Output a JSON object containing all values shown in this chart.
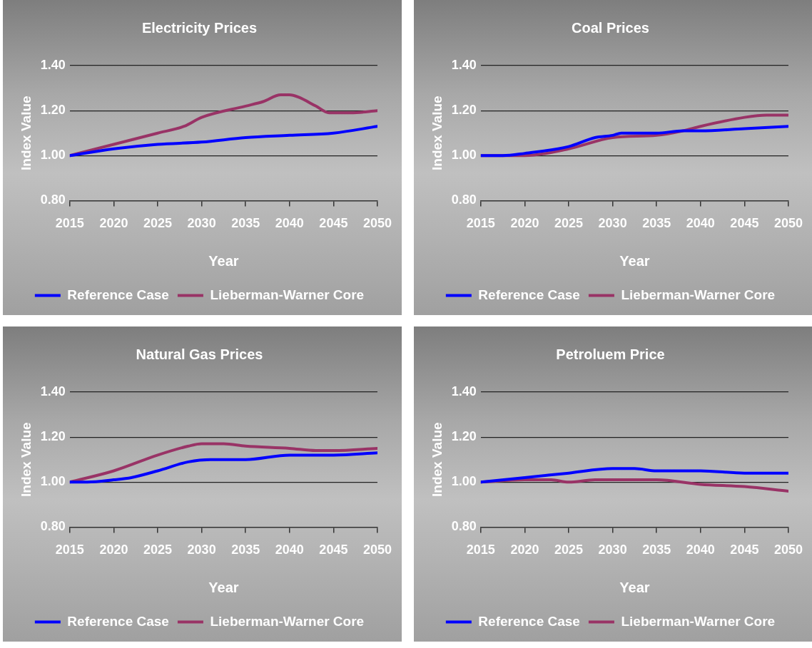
{
  "chart_data": [
    {
      "type": "line",
      "title": "Electricity Prices",
      "xlabel": "Year",
      "ylabel": "Index Value",
      "xlim": [
        2015,
        2050
      ],
      "xticks": [
        2015,
        2020,
        2025,
        2030,
        2035,
        2040,
        2045,
        2050
      ],
      "ylim": [
        0.8,
        1.4
      ],
      "yticks": [
        {
          "value": 0.8,
          "label": "0.80"
        },
        {
          "value": 1.0,
          "label": "1.00"
        },
        {
          "value": 1.2,
          "label": "1.20"
        },
        {
          "value": 1.4,
          "label": "1.40"
        }
      ],
      "grid": "y",
      "legend": "bottom",
      "marker": "none",
      "line_style": "solid",
      "series": [
        {
          "name": "Reference Case",
          "color": "#0000ff",
          "x": [
            2015,
            2020,
            2025,
            2030,
            2035,
            2040,
            2045,
            2050
          ],
          "values": [
            1.0,
            1.03,
            1.05,
            1.06,
            1.08,
            1.09,
            1.1,
            1.13
          ]
        },
        {
          "name": "Lieberman-Warner Core",
          "color": "#993366",
          "x": [
            2015,
            2020,
            2025,
            2028,
            2030,
            2035,
            2037,
            2039,
            2040,
            2041,
            2043,
            2044.5,
            2045,
            2047,
            2050
          ],
          "values": [
            1.0,
            1.05,
            1.1,
            1.13,
            1.17,
            1.22,
            1.24,
            1.27,
            1.27,
            1.26,
            1.22,
            1.19,
            1.19,
            1.19,
            1.2
          ]
        }
      ]
    },
    {
      "type": "line",
      "title": "Coal Prices",
      "xlabel": "Year",
      "ylabel": "Index Value",
      "xlim": [
        2015,
        2050
      ],
      "xticks": [
        2015,
        2020,
        2025,
        2030,
        2035,
        2040,
        2045,
        2050
      ],
      "ylim": [
        0.8,
        1.4
      ],
      "yticks": [
        {
          "value": 0.8,
          "label": "0.80"
        },
        {
          "value": 1.0,
          "label": "1.00"
        },
        {
          "value": 1.2,
          "label": "1.20"
        },
        {
          "value": 1.4,
          "label": "1.40"
        }
      ],
      "grid": "y",
      "legend": "bottom",
      "marker": "none",
      "line_style": "solid",
      "series": [
        {
          "name": "Reference Case",
          "color": "#0000ff",
          "x": [
            2015,
            2017.5,
            2020,
            2025,
            2028,
            2030,
            2031,
            2035,
            2038,
            2040,
            2045,
            2050
          ],
          "values": [
            1.0,
            1.0,
            1.01,
            1.04,
            1.08,
            1.09,
            1.1,
            1.1,
            1.11,
            1.11,
            1.12,
            1.13
          ]
        },
        {
          "name": "Lieberman-Warner Core",
          "color": "#993366",
          "x": [
            2015,
            2020,
            2025,
            2030,
            2035,
            2038,
            2040,
            2045,
            2047.5,
            2050
          ],
          "values": [
            1.0,
            1.0,
            1.03,
            1.08,
            1.09,
            1.11,
            1.13,
            1.17,
            1.18,
            1.18
          ]
        }
      ]
    },
    {
      "type": "line",
      "title": "Natural Gas Prices",
      "xlabel": "Year",
      "ylabel": "Index Value",
      "xlim": [
        2015,
        2050
      ],
      "xticks": [
        2015,
        2020,
        2025,
        2030,
        2035,
        2040,
        2045,
        2050
      ],
      "ylim": [
        0.8,
        1.4
      ],
      "yticks": [
        {
          "value": 0.8,
          "label": "0.80"
        },
        {
          "value": 1.0,
          "label": "1.00"
        },
        {
          "value": 1.2,
          "label": "1.20"
        },
        {
          "value": 1.4,
          "label": "1.40"
        }
      ],
      "grid": "y",
      "legend": "bottom",
      "marker": "none",
      "line_style": "solid",
      "series": [
        {
          "name": "Reference Case",
          "color": "#0000ff",
          "x": [
            2015,
            2017,
            2020,
            2022,
            2025,
            2028.5,
            2031,
            2035,
            2040,
            2045,
            2050
          ],
          "values": [
            1.0,
            1.0,
            1.01,
            1.02,
            1.05,
            1.09,
            1.1,
            1.1,
            1.12,
            1.12,
            1.13
          ]
        },
        {
          "name": "Lieberman-Warner Core",
          "color": "#993366",
          "x": [
            2015,
            2020,
            2025,
            2028.5,
            2030,
            2032.5,
            2035,
            2040,
            2043,
            2045,
            2050
          ],
          "values": [
            1.0,
            1.05,
            1.12,
            1.16,
            1.17,
            1.17,
            1.16,
            1.15,
            1.14,
            1.14,
            1.15
          ]
        }
      ]
    },
    {
      "type": "line",
      "title": "Petroluem Price",
      "xlabel": "Year",
      "ylabel": "Index Value",
      "xlim": [
        2015,
        2050
      ],
      "xticks": [
        2015,
        2020,
        2025,
        2030,
        2035,
        2040,
        2045,
        2050
      ],
      "ylim": [
        0.8,
        1.4
      ],
      "yticks": [
        {
          "value": 0.8,
          "label": "0.80"
        },
        {
          "value": 1.0,
          "label": "1.00"
        },
        {
          "value": 1.2,
          "label": "1.20"
        },
        {
          "value": 1.4,
          "label": "1.40"
        }
      ],
      "grid": "y",
      "legend": "bottom",
      "marker": "none",
      "line_style": "solid",
      "series": [
        {
          "name": "Reference Case",
          "color": "#0000ff",
          "x": [
            2015,
            2020,
            2025,
            2030,
            2032.5,
            2035,
            2040,
            2045,
            2050
          ],
          "values": [
            1.0,
            1.02,
            1.04,
            1.06,
            1.06,
            1.05,
            1.05,
            1.04,
            1.04
          ]
        },
        {
          "name": "Lieberman-Warner Core",
          "color": "#993366",
          "x": [
            2015,
            2020,
            2023,
            2025,
            2028,
            2030,
            2035,
            2040,
            2045,
            2050
          ],
          "values": [
            1.0,
            1.01,
            1.01,
            1.0,
            1.01,
            1.01,
            1.01,
            0.99,
            0.98,
            0.96
          ]
        }
      ]
    }
  ]
}
